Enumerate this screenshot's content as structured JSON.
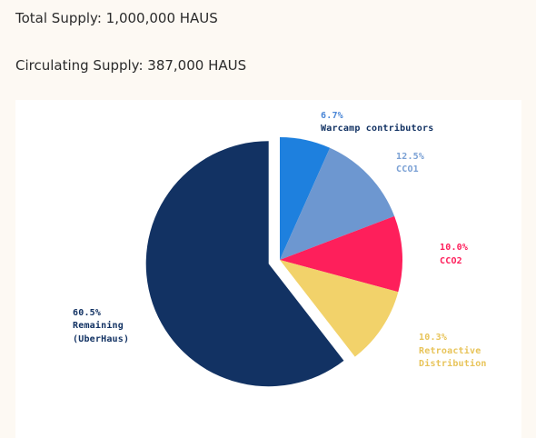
{
  "supply": {
    "total_text": "Total Supply: 1,000,000 HAUS",
    "circulating_text": "Circulating Supply: 387,000 HAUS"
  },
  "chart_data": {
    "type": "pie",
    "title": "",
    "exploded": "Remaining (UberHaus)",
    "slices": [
      {
        "pct_label": "6.7%",
        "name": "Warcamp contributors",
        "value": 6.7,
        "color": "#1e80de"
      },
      {
        "pct_label": "12.5%",
        "name": "CCO1",
        "value": 12.5,
        "color": "#6d97d0"
      },
      {
        "pct_label": "10.0%",
        "name": "CCO2",
        "value": 10.0,
        "color": "#fe1f5b"
      },
      {
        "pct_label": "10.3%",
        "name": "Retroactive Distribution",
        "value": 10.3,
        "color": "#f2d26a"
      },
      {
        "pct_label": "60.5%",
        "name": "Remaining (UberHaus)",
        "value": 60.5,
        "color": "#123263"
      }
    ]
  }
}
